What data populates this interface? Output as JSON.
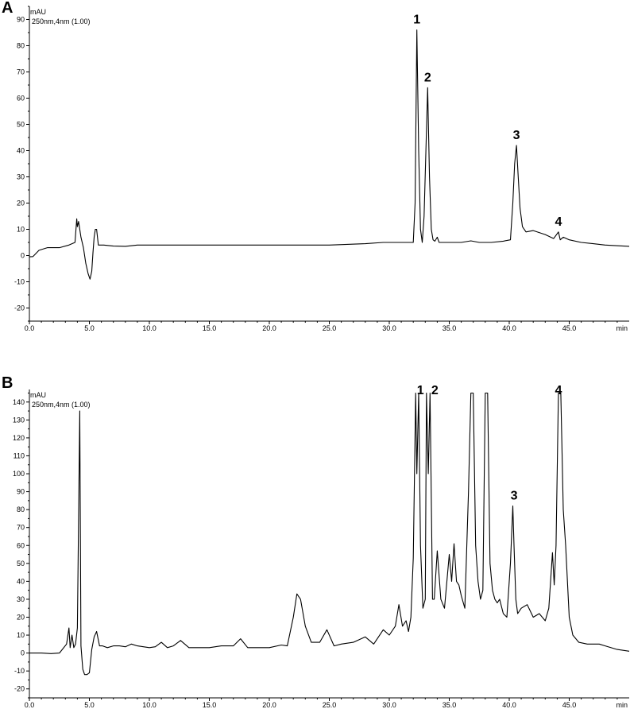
{
  "chart_data": [
    {
      "type": "line",
      "panel_label": "A",
      "unit_label": "mAU",
      "wavelength_label": "250nm,4nm (1.00)",
      "xlabel": "min",
      "ylabel": "mAU",
      "xlim": [
        0,
        50
      ],
      "ylim": [
        -25,
        95
      ],
      "x_ticks": [
        "0.0",
        "5.0",
        "10.0",
        "15.0",
        "20.0",
        "25.0",
        "30.0",
        "35.0",
        "40.0",
        "45.0"
      ],
      "y_ticks": [
        "-20",
        "-10",
        "0",
        "10",
        "20",
        "30",
        "40",
        "50",
        "60",
        "70",
        "80",
        "90"
      ],
      "peaks": [
        {
          "label": "1",
          "x": 32.3,
          "y": 86
        },
        {
          "label": "2",
          "x": 33.2,
          "y": 64
        },
        {
          "label": "3",
          "x": 40.6,
          "y": 42
        },
        {
          "label": "4",
          "x": 44.1,
          "y": 9
        }
      ],
      "series": [
        {
          "x": [
            0,
            0.3,
            0.8,
            1.5,
            2.5,
            3.3,
            3.8,
            3.95,
            4.0,
            4.1,
            4.2,
            4.3,
            4.5,
            4.7,
            4.9,
            5.05,
            5.2,
            5.3,
            5.4,
            5.5,
            5.6,
            5.75,
            5.9,
            6.2,
            7,
            8,
            9,
            15,
            20,
            25,
            28,
            29.5,
            31,
            32.0,
            32.15,
            32.3,
            32.45,
            32.6,
            32.75,
            32.9,
            33.05,
            33.2,
            33.35,
            33.5,
            33.65,
            33.8,
            34.0,
            34.15,
            34.3,
            34.6,
            35,
            36,
            36.8,
            37.5,
            38.5,
            39.5,
            40.1,
            40.3,
            40.45,
            40.6,
            40.75,
            40.9,
            41.1,
            41.4,
            42,
            43,
            43.7,
            43.95,
            44.1,
            44.25,
            44.5,
            45,
            46,
            47,
            48,
            50
          ],
          "y": [
            -0.5,
            -0.4,
            2,
            3,
            3,
            4,
            5,
            14,
            11,
            13,
            10,
            7,
            3,
            -3,
            -7,
            -9,
            -6,
            1,
            7,
            10,
            10,
            4,
            4,
            4,
            3.6,
            3.5,
            4,
            4,
            4,
            4,
            4.5,
            5,
            5,
            5,
            20,
            86,
            40,
            10,
            5,
            15,
            40,
            64,
            30,
            10,
            6,
            5.5,
            7,
            5,
            5,
            5,
            5,
            5,
            5.6,
            5,
            5,
            5.5,
            6,
            20,
            35,
            42,
            30,
            18,
            11,
            9,
            9.5,
            8,
            6.5,
            8,
            9,
            6,
            7,
            6,
            5,
            4.5,
            4,
            3.5
          ]
        }
      ]
    },
    {
      "type": "line",
      "panel_label": "B",
      "unit_label": "mAU",
      "wavelength_label": "250nm,4nm (1.00)",
      "xlabel": "min",
      "ylabel": "mAU",
      "xlim": [
        0,
        50
      ],
      "ylim": [
        -25,
        147
      ],
      "x_ticks": [
        "0.0",
        "5.0",
        "10.0",
        "15.0",
        "20.0",
        "25.0",
        "30.0",
        "35.0",
        "40.0",
        "45.0"
      ],
      "y_ticks": [
        "-20",
        "-10",
        "0",
        "10",
        "20",
        "30",
        "40",
        "50",
        "60",
        "70",
        "80",
        "90",
        "100",
        "110",
        "120",
        "130",
        "140"
      ],
      "peaks": [
        {
          "label": "1",
          "x": 32.6,
          "y": 145
        },
        {
          "label": "2",
          "x": 33.8,
          "y": 145
        },
        {
          "label": "3",
          "x": 40.4,
          "y": 82
        },
        {
          "label": "4",
          "x": 44.1,
          "y": 145
        }
      ],
      "series": [
        {
          "x": [
            0,
            1,
            1.8,
            2.5,
            3.1,
            3.3,
            3.4,
            3.55,
            3.7,
            3.85,
            4.0,
            4.2,
            4.3,
            4.45,
            4.6,
            4.8,
            5.0,
            5.2,
            5.4,
            5.6,
            5.85,
            6.1,
            6.5,
            7,
            7.5,
            8.0,
            8.5,
            9,
            10,
            10.5,
            11.0,
            11.5,
            12,
            12.6,
            13.3,
            14,
            15,
            16,
            17,
            17.6,
            18.2,
            19,
            20,
            21,
            21.5,
            22.0,
            22.3,
            22.6,
            23,
            23.5,
            24.2,
            24.8,
            25.4,
            26,
            27,
            28,
            28.7,
            29.5,
            30,
            30.5,
            30.8,
            31.1,
            31.4,
            31.6,
            31.8,
            32.0,
            32.2,
            32.3,
            32.45,
            32.6,
            32.8,
            33.0,
            33.1,
            33.25,
            33.4,
            33.6,
            33.75,
            34.0,
            34.3,
            34.6,
            34.8,
            35.0,
            35.2,
            35.4,
            35.6,
            35.8,
            36.0,
            36.3,
            36.6,
            36.8,
            37.0,
            37.2,
            37.4,
            37.6,
            37.8,
            38.0,
            38.2,
            38.4,
            38.6,
            38.8,
            39.0,
            39.2,
            39.5,
            39.8,
            40.1,
            40.3,
            40.4,
            40.55,
            40.7,
            41.0,
            41.5,
            42.0,
            42.5,
            43.0,
            43.3,
            43.6,
            43.75,
            43.9,
            44.1,
            44.3,
            44.5,
            44.7,
            45.0,
            45.3,
            45.8,
            46.5,
            47.0,
            47.5,
            48,
            49,
            50
          ],
          "y": [
            0,
            0,
            -0.3,
            0,
            5,
            14,
            3,
            10,
            3,
            5,
            14,
            135,
            4,
            -9,
            -12,
            -12,
            -11,
            2,
            9,
            12,
            4,
            4,
            3,
            4,
            4,
            3.5,
            5,
            4,
            3,
            3.5,
            6,
            3,
            4,
            7,
            3,
            3,
            3,
            4,
            4,
            8,
            3,
            3,
            3,
            4.5,
            4,
            20,
            33,
            30,
            15,
            6,
            6,
            13,
            4,
            5,
            6,
            9,
            5,
            13,
            10,
            15,
            27,
            15,
            18,
            12,
            20,
            53,
            145,
            100,
            145,
            60,
            25,
            30,
            145,
            100,
            145,
            30,
            30,
            57,
            30,
            25,
            40,
            55,
            40,
            61,
            40,
            38,
            32,
            25,
            90,
            145,
            145,
            60,
            40,
            30,
            35,
            145,
            145,
            50,
            35,
            30,
            28,
            30,
            22,
            20,
            50,
            82,
            60,
            30,
            22,
            25,
            27,
            20,
            22,
            18,
            25,
            56,
            38,
            60,
            145,
            145,
            80,
            60,
            20,
            10,
            6,
            5,
            5,
            5,
            4,
            2,
            1
          ]
        }
      ]
    }
  ]
}
